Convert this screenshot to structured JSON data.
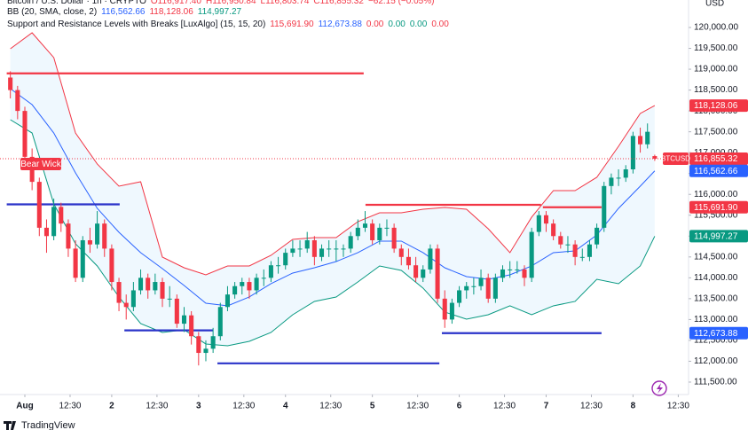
{
  "chart_data": {
    "type": "candlestick",
    "currency": "USD",
    "brand": "TradingView",
    "annotation": "Bear Wick",
    "legend": {
      "symbol": "Bitcoin / U.S. Dollar · 1h · CRYPTO",
      "ohlc": [
        "O116,917.40",
        "H116,950.84",
        "L116,803.74",
        "C116,855.32",
        "−62.15 (−0.05%)"
      ],
      "ohlc_color": "#f23645",
      "bb_name": "BB (20, SMA, close, 2)",
      "bb_values": [
        "116,562.66",
        "118,128.06",
        "114,997.27"
      ],
      "bb_colors": [
        "#2962ff",
        "#f23645",
        "#089981"
      ],
      "sr_name": "Support and Resistance Levels with Breaks [LuxAlgo] (15, 15, 20)",
      "sr_values": [
        "115,691.90",
        "112,673.88",
        "0.00",
        "0.00",
        "0.00",
        "0.00"
      ],
      "sr_colors": [
        "#f23645",
        "#2962ff",
        "#f23645",
        "#089981",
        "#089981",
        "#f23645"
      ]
    },
    "up_color": "#089981",
    "down_color": "#f23645",
    "xlim": [
      -6.86,
      183.1
    ],
    "ylim": [
      111202,
      120659
    ],
    "xticks": [
      {
        "value": 0,
        "label": "Aug"
      },
      {
        "value": 12.5,
        "label": "12:30"
      },
      {
        "value": 24,
        "label": "2"
      },
      {
        "value": 36.5,
        "label": "12:30"
      },
      {
        "value": 48,
        "label": "3"
      },
      {
        "value": 60.5,
        "label": "12:30"
      },
      {
        "value": 72,
        "label": "4"
      },
      {
        "value": 84.5,
        "label": "12:30"
      },
      {
        "value": 96,
        "label": "5"
      },
      {
        "value": 108.5,
        "label": "12:30"
      },
      {
        "value": 120,
        "label": "6"
      },
      {
        "value": 132.5,
        "label": "12:30"
      },
      {
        "value": 144,
        "label": "7"
      },
      {
        "value": 156.5,
        "label": "12:30"
      },
      {
        "value": 168,
        "label": "8"
      },
      {
        "value": 180.5,
        "label": "12:30"
      }
    ],
    "yticks": [
      {
        "value": 111500,
        "label": "111,500.00"
      },
      {
        "value": 112000,
        "label": "112,000.00"
      },
      {
        "value": 112500,
        "label": "112,500.00"
      },
      {
        "value": 113000,
        "label": "113,000.00"
      },
      {
        "value": 113500,
        "label": "113,500.00"
      },
      {
        "value": 114000,
        "label": "114,000.00"
      },
      {
        "value": 114500,
        "label": "114,500.00"
      },
      {
        "value": 115000,
        "label": "115,000.00"
      },
      {
        "value": 115500,
        "label": "115,500.00"
      },
      {
        "value": 116000,
        "label": "116,000.00"
      },
      {
        "value": 116500,
        "label": "116,500.00"
      },
      {
        "value": 117000,
        "label": "117,000.00"
      },
      {
        "value": 117500,
        "label": "117,500.00"
      },
      {
        "value": 118000,
        "label": "118,000.00"
      },
      {
        "value": 118500,
        "label": "118,500.00"
      },
      {
        "value": 119000,
        "label": "119,000.00"
      },
      {
        "value": 119500,
        "label": "119,500.00"
      },
      {
        "value": 120000,
        "label": "120,000.00"
      }
    ],
    "x": [
      -4,
      -2,
      0,
      2,
      4,
      6,
      8,
      10,
      12,
      14,
      16,
      18,
      20,
      22,
      24,
      26,
      28,
      30,
      32,
      34,
      36,
      38,
      40,
      42,
      44,
      46,
      48,
      50,
      52,
      54,
      56,
      58,
      60,
      62,
      64,
      66,
      68,
      70,
      72,
      74,
      76,
      78,
      80,
      82,
      84,
      86,
      88,
      90,
      92,
      94,
      96,
      98,
      100,
      102,
      104,
      106,
      108,
      110,
      112,
      114,
      116,
      118,
      120,
      122,
      124,
      126,
      128,
      130,
      132,
      134,
      136,
      138,
      140,
      142,
      144,
      146,
      148,
      150,
      152,
      154,
      156,
      158,
      160,
      162,
      164,
      166,
      168,
      170,
      172,
      174
    ],
    "candles": [
      [
        118800,
        118950,
        118300,
        118500
      ],
      [
        118500,
        118600,
        117800,
        118000
      ],
      [
        118000,
        118100,
        116800,
        116900
      ],
      [
        116900,
        117100,
        116100,
        116300
      ],
      [
        116300,
        116400,
        115000,
        115200
      ],
      [
        115200,
        115400,
        114600,
        115000
      ],
      [
        115000,
        115900,
        114900,
        115700
      ],
      [
        115700,
        115800,
        115100,
        115300
      ],
      [
        115300,
        115400,
        114500,
        114700
      ],
      [
        114700,
        114900,
        113900,
        114000
      ],
      [
        114000,
        115000,
        113900,
        114900
      ],
      [
        114900,
        115200,
        114600,
        114800
      ],
      [
        114800,
        115600,
        114700,
        115300
      ],
      [
        115300,
        115400,
        114500,
        114700
      ],
      [
        114700,
        114800,
        113700,
        113900
      ],
      [
        113900,
        114000,
        113200,
        113400
      ],
      [
        113400,
        113600,
        113000,
        113300
      ],
      [
        113300,
        113900,
        113200,
        113700
      ],
      [
        113700,
        114200,
        113600,
        114000
      ],
      [
        114000,
        114100,
        113500,
        113700
      ],
      [
        113700,
        114100,
        113600,
        113900
      ],
      [
        113900,
        114000,
        113300,
        113500
      ],
      [
        113500,
        113800,
        113300,
        113500
      ],
      [
        113500,
        113600,
        112800,
        112900
      ],
      [
        112900,
        113300,
        112700,
        113100
      ],
      [
        113100,
        113200,
        112400,
        112600
      ],
      [
        112600,
        112700,
        111900,
        112200
      ],
      [
        112200,
        112500,
        112000,
        112300
      ],
      [
        112300,
        112800,
        112200,
        112600
      ],
      [
        112600,
        113400,
        112500,
        113300
      ],
      [
        113300,
        113800,
        113200,
        113600
      ],
      [
        113600,
        113900,
        113500,
        113800
      ],
      [
        113800,
        114000,
        113600,
        113900
      ],
      [
        113900,
        114000,
        113500,
        113700
      ],
      [
        113700,
        114100,
        113600,
        114000
      ],
      [
        114000,
        114200,
        113800,
        114000
      ],
      [
        114000,
        114400,
        113900,
        114300
      ],
      [
        114300,
        114500,
        114100,
        114300
      ],
      [
        114300,
        114700,
        114200,
        114600
      ],
      [
        114600,
        114900,
        114500,
        114700
      ],
      [
        114700,
        114900,
        114500,
        114700
      ],
      [
        114700,
        115100,
        114600,
        114900
      ],
      [
        114900,
        115000,
        114300,
        114500
      ],
      [
        114500,
        114800,
        114400,
        114700
      ],
      [
        114700,
        114900,
        114500,
        114700
      ],
      [
        114700,
        114900,
        114400,
        114700
      ],
      [
        114700,
        114800,
        114500,
        114700
      ],
      [
        114700,
        115100,
        114600,
        115000
      ],
      [
        115000,
        115400,
        114900,
        115200
      ],
      [
        115200,
        115600,
        115100,
        115300
      ],
      [
        115300,
        115400,
        114800,
        114900
      ],
      [
        114900,
        115300,
        114800,
        115200
      ],
      [
        115200,
        115400,
        115000,
        115200
      ],
      [
        115200,
        115300,
        114600,
        114700
      ],
      [
        114700,
        114800,
        114300,
        114500
      ],
      [
        114500,
        114700,
        114200,
        114300
      ],
      [
        114300,
        114500,
        113900,
        114000
      ],
      [
        114000,
        114300,
        113900,
        114200
      ],
      [
        114200,
        114800,
        114100,
        114700
      ],
      [
        114700,
        114800,
        113400,
        113500
      ],
      [
        113500,
        113700,
        112800,
        113000
      ],
      [
        113000,
        113500,
        112900,
        113400
      ],
      [
        113400,
        113800,
        113300,
        113700
      ],
      [
        113700,
        113900,
        113500,
        113800
      ],
      [
        113800,
        114000,
        113600,
        113800
      ],
      [
        113800,
        114200,
        113700,
        114000
      ],
      [
        114000,
        114100,
        113400,
        113500
      ],
      [
        113500,
        114100,
        113400,
        114000
      ],
      [
        114000,
        114300,
        113900,
        114200
      ],
      [
        114200,
        114400,
        114000,
        114200
      ],
      [
        114200,
        114400,
        114100,
        114200
      ],
      [
        114200,
        114300,
        113800,
        114000
      ],
      [
        114000,
        115200,
        113900,
        115100
      ],
      [
        115100,
        115600,
        115000,
        115500
      ],
      [
        115500,
        115600,
        115100,
        115300
      ],
      [
        115300,
        115400,
        114900,
        115000
      ],
      [
        115000,
        115100,
        114700,
        114800
      ],
      [
        114800,
        115000,
        114600,
        114800
      ],
      [
        114800,
        114900,
        114300,
        114500
      ],
      [
        114500,
        114700,
        114400,
        114500
      ],
      [
        114500,
        114900,
        114400,
        114800
      ],
      [
        114800,
        115300,
        114700,
        115200
      ],
      [
        115200,
        116300,
        115100,
        116200
      ],
      [
        116200,
        116500,
        116000,
        116400
      ],
      [
        116400,
        116600,
        116200,
        116400
      ],
      [
        116400,
        116700,
        116300,
        116600
      ],
      [
        116600,
        117500,
        116500,
        117400
      ],
      [
        117400,
        117600,
        117000,
        117200
      ],
      [
        117200,
        117700,
        117100,
        117500
      ],
      [
        116917.4,
        116950.84,
        116803.74,
        116855.32
      ]
    ],
    "bands": {
      "x": [
        -4,
        2,
        8,
        14,
        20,
        26,
        32,
        38,
        44,
        50,
        56,
        62,
        68,
        74,
        80,
        86,
        92,
        98,
        104,
        110,
        116,
        122,
        128,
        134,
        140,
        146,
        152,
        158,
        164,
        170,
        174
      ],
      "fill": "rgba(33,150,243,0.07)",
      "series": [
        {
          "color": "#f23645",
          "values": [
            119490,
            119873,
            119278,
            117471,
            116728,
            116196,
            116303,
            114496,
            114241,
            114071,
            114284,
            114284,
            114539,
            114921,
            114964,
            114964,
            115346,
            115559,
            115559,
            115644,
            115686,
            115644,
            115176,
            114603,
            115453,
            116090,
            116090,
            116409,
            117153,
            117939,
            118128.06
          ]
        },
        {
          "color": "#2962ff",
          "values": [
            118534,
            118151,
            117471,
            116515,
            115665,
            115091,
            114603,
            114220,
            113816,
            113391,
            113328,
            113540,
            113859,
            114114,
            114241,
            114390,
            114603,
            114879,
            114879,
            114603,
            114241,
            114029,
            113965,
            114071,
            114284,
            114603,
            114645,
            115028,
            115665,
            116196,
            116562.66
          ]
        },
        {
          "color": "#089981",
          "values": [
            117790,
            117471,
            115771,
            114815,
            114284,
            113540,
            112903,
            112690,
            112754,
            112414,
            112371,
            112478,
            112690,
            113115,
            113434,
            113540,
            113901,
            114284,
            114178,
            113753,
            113179,
            113009,
            113115,
            113328,
            113115,
            113328,
            113434,
            113965,
            113859,
            114284,
            114997.27
          ]
        }
      ]
    },
    "resistance_color": "#f23645",
    "support_color": "#2a33c9",
    "resistance": [
      {
        "x": [
          -5,
          93.6
        ],
        "value": 118900
      },
      {
        "x": [
          94.1,
          142.6
        ],
        "value": 115750
      },
      {
        "x": [
          143.1,
          159.3
        ],
        "value": 115691.9
      }
    ],
    "support": [
      {
        "x": [
          -5,
          26.2
        ],
        "value": 115760
      },
      {
        "x": [
          27.5,
          52
        ],
        "value": 112740
      },
      {
        "x": [
          53.2,
          114.5
        ],
        "value": 111950
      },
      {
        "x": [
          115.2,
          159.3
        ],
        "value": 112673.88
      }
    ],
    "price_tags": [
      {
        "value": 118128.06,
        "label": "118,128.06",
        "color": "#f23645"
      },
      {
        "value": 116855.32,
        "label": "116,855.32",
        "color": "#f23645",
        "name": "BTCUSD"
      },
      {
        "value": 116562.66,
        "label": "116,562.66",
        "color": "#2962ff"
      },
      {
        "value": 115691.9,
        "label": "115,691.90",
        "color": "#f23645"
      },
      {
        "value": 114997.27,
        "label": "114,997.27",
        "color": "#089981"
      },
      {
        "value": 112673.88,
        "label": "112,673.88",
        "color": "#2962ff"
      }
    ]
  }
}
